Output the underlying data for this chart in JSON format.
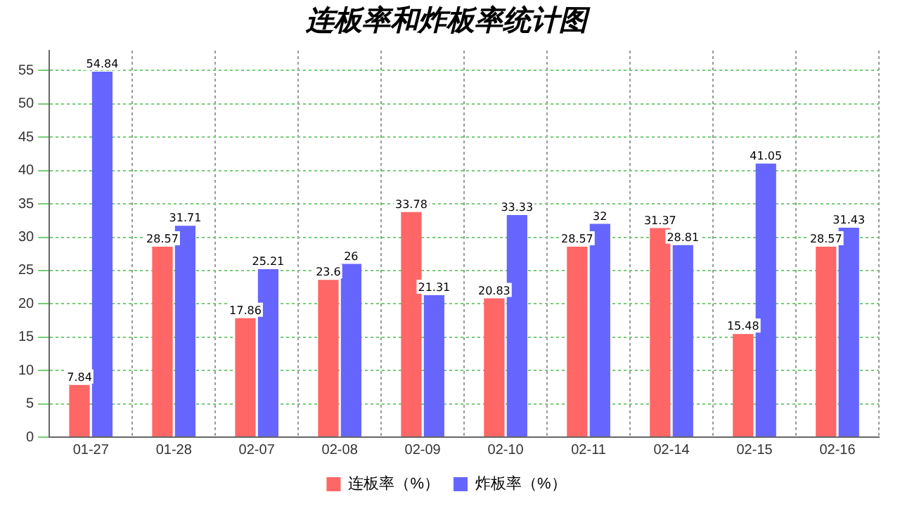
{
  "chart_data": {
    "type": "bar",
    "title": "连板率和炸板率统计图",
    "categories": [
      "01-27",
      "01-28",
      "02-07",
      "02-08",
      "02-09",
      "02-10",
      "02-11",
      "02-14",
      "02-15",
      "02-16"
    ],
    "series": [
      {
        "name": "连板率（%）",
        "color": "#ff6666",
        "values": [
          7.84,
          28.57,
          17.86,
          23.6,
          33.78,
          20.83,
          28.57,
          31.37,
          15.48,
          28.57
        ]
      },
      {
        "name": "炸板率（%）",
        "color": "#6666ff",
        "values": [
          54.84,
          31.71,
          25.21,
          26,
          21.31,
          33.33,
          32,
          28.81,
          41.05,
          31.43
        ]
      }
    ],
    "ylim": [
      0,
      58
    ],
    "yticks": [
      0,
      5,
      10,
      15,
      20,
      25,
      30,
      35,
      40,
      45,
      50,
      55
    ],
    "grid": true,
    "legend": "bottom",
    "data_labels": true
  }
}
